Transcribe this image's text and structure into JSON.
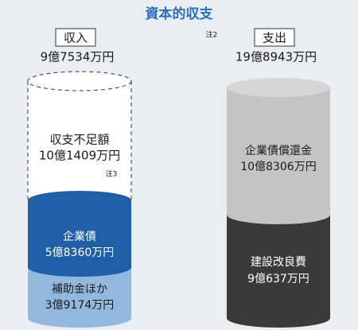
{
  "title": "資本的収支",
  "note": "注2",
  "income": {
    "label": "収入",
    "total": "9億7534万円",
    "segments": [
      {
        "name": "収支不足額",
        "amount": "10億1409万円",
        "note": "注3"
      },
      {
        "name": "企業債",
        "amount": "5億8360万円"
      },
      {
        "name": "補助金ほか",
        "amount": "3億9174万円"
      }
    ]
  },
  "expenditure": {
    "label": "支出",
    "total": "19億8943万円",
    "segments": [
      {
        "name": "企業債償還金",
        "amount": "10億8306万円"
      },
      {
        "name": "建設改良費",
        "amount": "9億637万円"
      }
    ]
  }
}
